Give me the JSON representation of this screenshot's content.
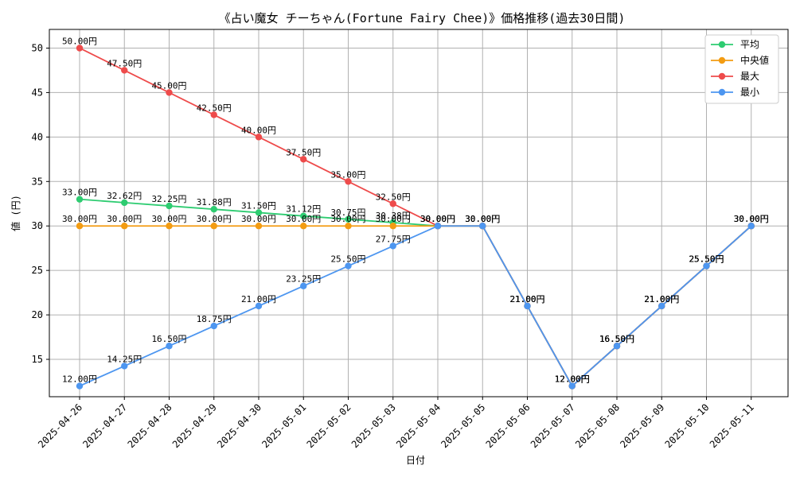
{
  "chart_data": {
    "type": "line",
    "title": "《占い魔女 チーちゃん(Fortune Fairy Chee)》価格推移(過去30日間)",
    "xlabel": "日付",
    "ylabel": "値 (円)",
    "label_suffix": "円",
    "ylim": [
      10.8,
      52.1
    ],
    "yticks": [
      15,
      20,
      25,
      30,
      35,
      40,
      45,
      50
    ],
    "grid": true,
    "legend_position": "top-right",
    "categories": [
      "2025-04-26",
      "2025-04-27",
      "2025-04-28",
      "2025-04-29",
      "2025-04-30",
      "2025-05-01",
      "2025-05-02",
      "2025-05-03",
      "2025-05-04",
      "2025-05-05",
      "2025-05-06",
      "2025-05-07",
      "2025-05-08",
      "2025-05-09",
      "2025-05-10",
      "2025-05-11"
    ],
    "series": [
      {
        "name": "平均",
        "color": "#2ecc71",
        "values": [
          33.0,
          32.62,
          32.25,
          31.88,
          31.5,
          31.12,
          30.75,
          30.38,
          30.0,
          30.0,
          21.0,
          12.0,
          16.5,
          21.0,
          25.5,
          30.0
        ]
      },
      {
        "name": "中央値",
        "color": "#f39c12",
        "values": [
          30.0,
          30.0,
          30.0,
          30.0,
          30.0,
          30.0,
          30.0,
          30.0,
          30.0,
          30.0,
          21.0,
          12.0,
          16.5,
          21.0,
          25.5,
          30.0
        ]
      },
      {
        "name": "最大",
        "color": "#ee4b4b",
        "values": [
          50.0,
          47.5,
          45.0,
          42.5,
          40.0,
          37.5,
          35.0,
          32.5,
          30.0,
          30.0,
          21.0,
          12.0,
          16.5,
          21.0,
          25.5,
          30.0
        ]
      },
      {
        "name": "最小",
        "color": "#4d96f0",
        "values": [
          12.0,
          14.25,
          16.5,
          18.75,
          21.0,
          23.25,
          25.5,
          27.75,
          30.0,
          30.0,
          21.0,
          12.0,
          16.5,
          21.0,
          25.5,
          30.0
        ]
      }
    ]
  }
}
